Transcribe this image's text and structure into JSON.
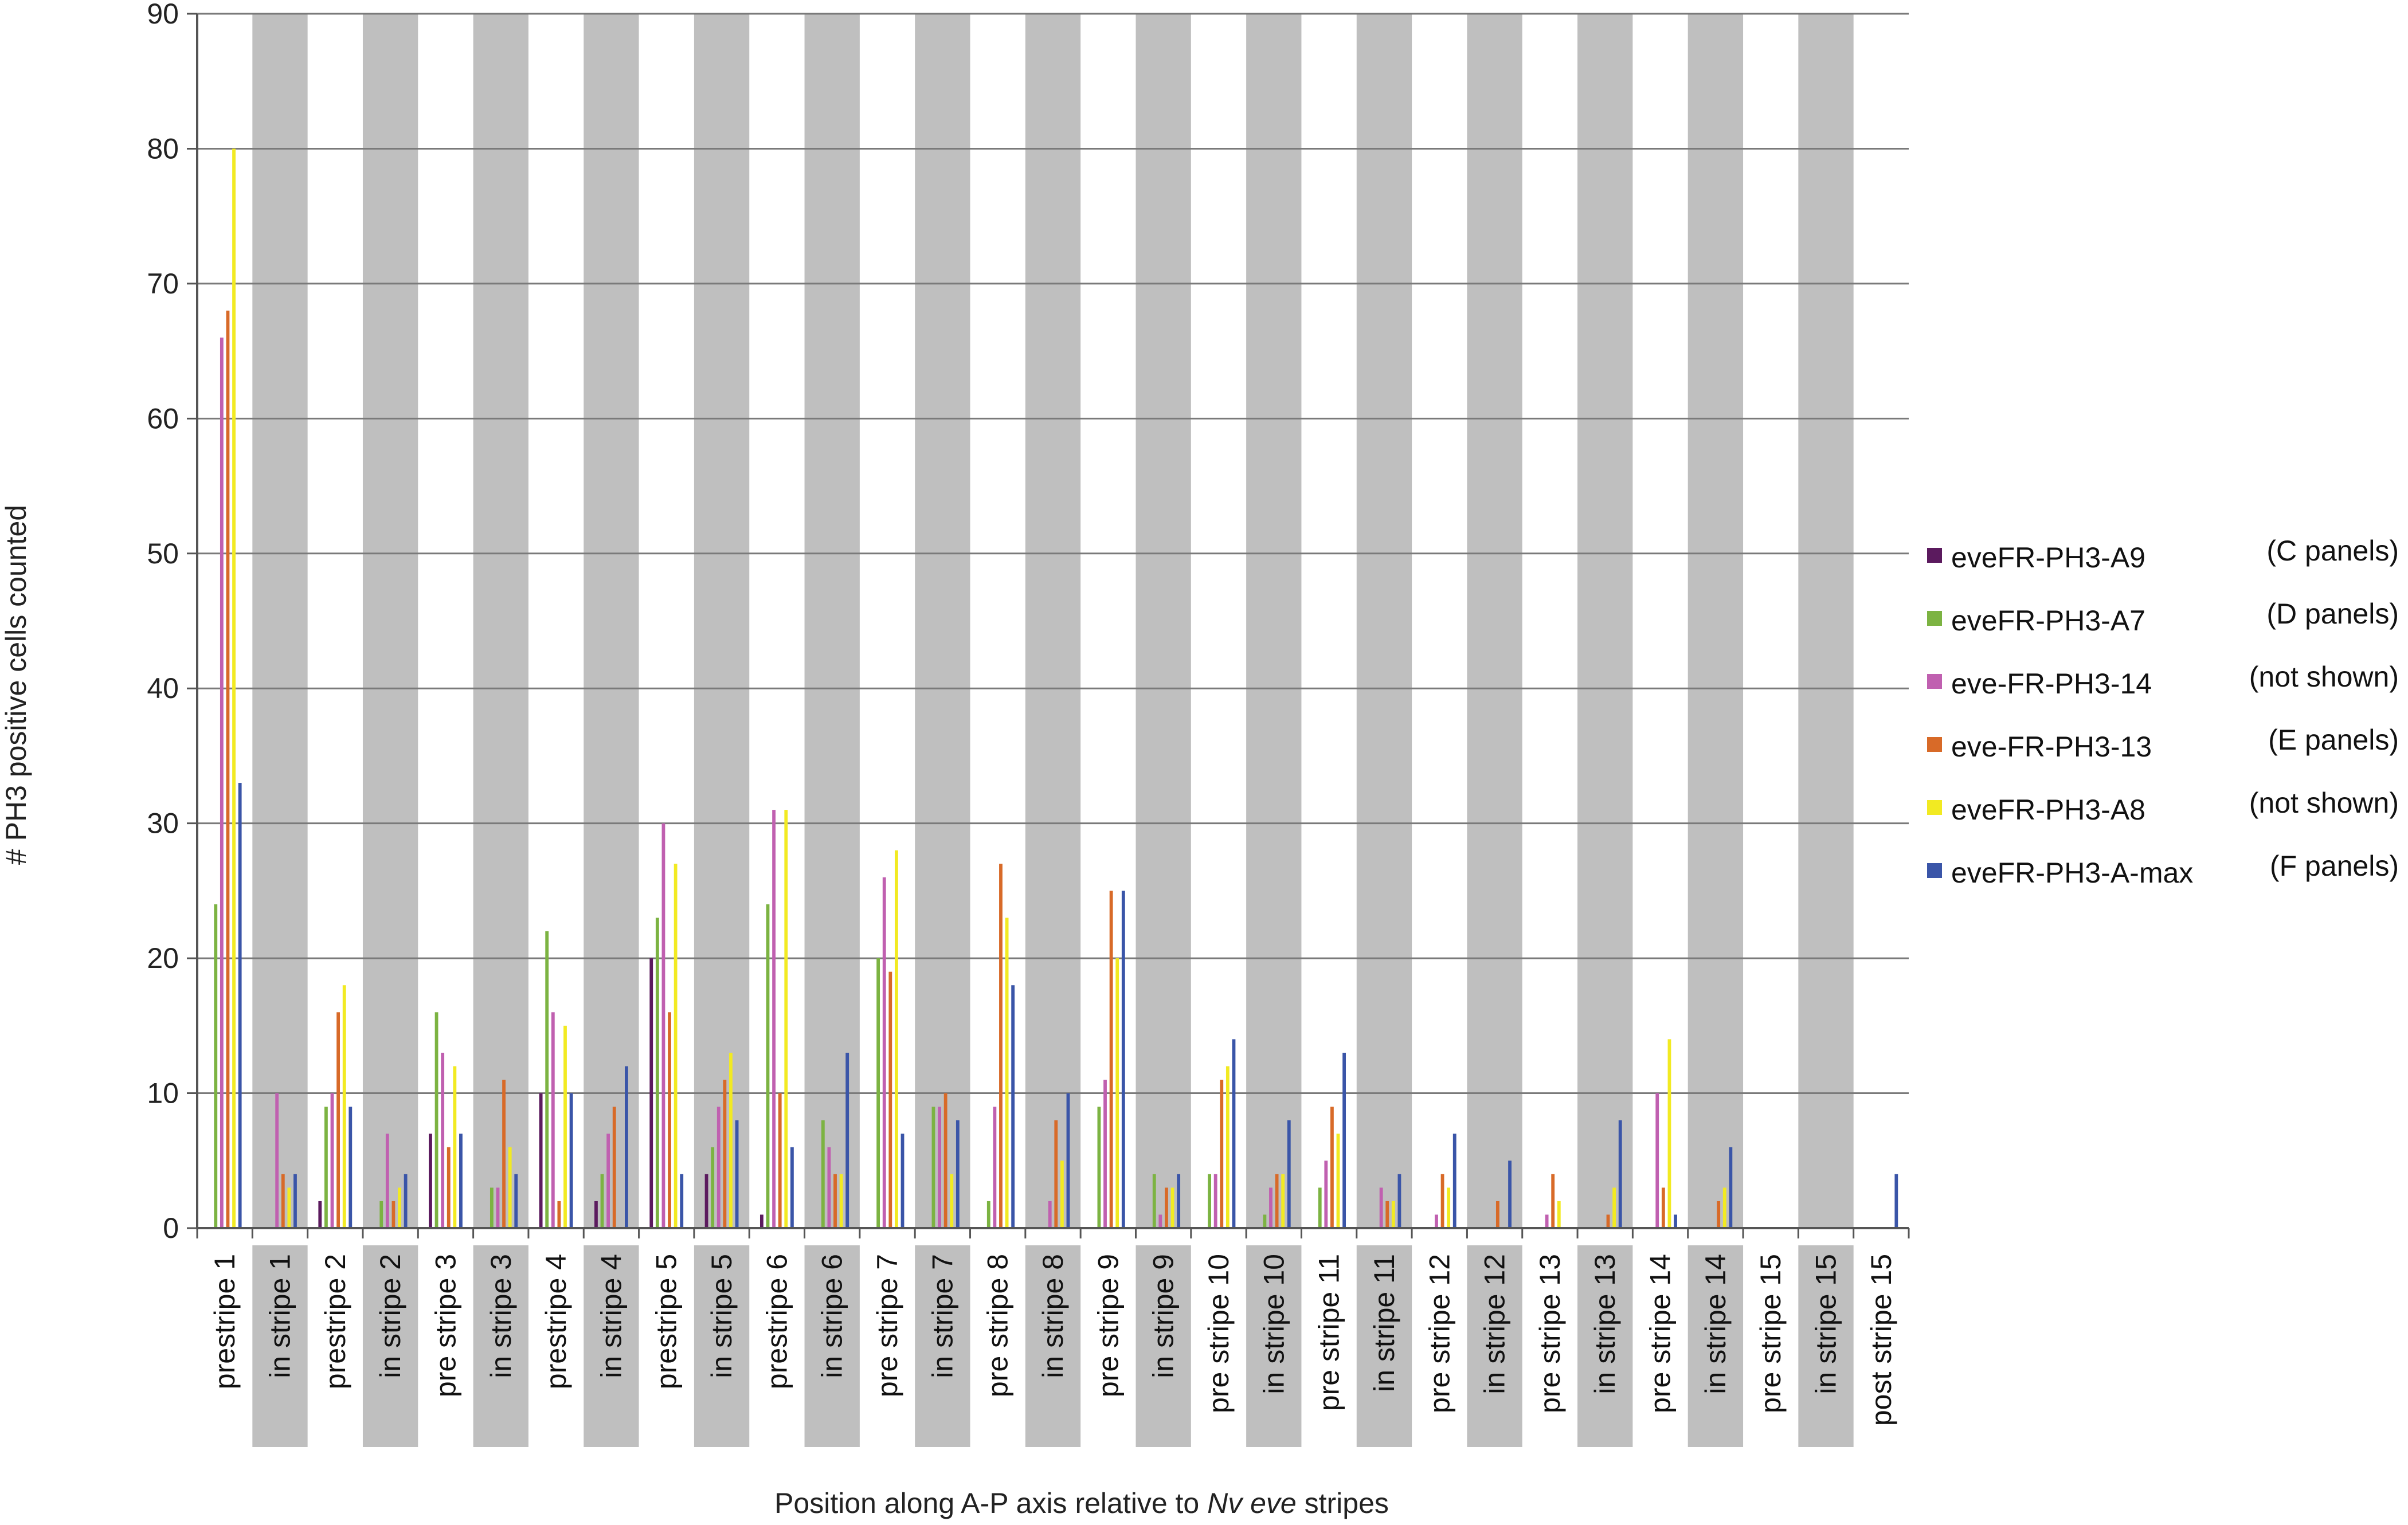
{
  "chart_data": {
    "type": "bar",
    "ylabel": "# PH3 positive cells counted",
    "xlabel_parts": [
      {
        "text": "Position along A-P axis relative to ",
        "italic": false
      },
      {
        "text": "Nv eve",
        "italic": true
      },
      {
        "text": " stripes",
        "italic": false
      }
    ],
    "ylim": [
      0,
      90
    ],
    "yticks": [
      0,
      10,
      20,
      30,
      40,
      50,
      60,
      70,
      80,
      90
    ],
    "grid": true,
    "legend_position": "right",
    "shaded_category_color": "#bfbfbf",
    "categories": [
      "prestripe 1",
      "in stripe 1",
      "prestripe 2",
      "in stripe 2",
      "pre stripe 3",
      "in stripe 3",
      "prestripe 4",
      "in stripe 4",
      "prestripe 5",
      "in stripe 5",
      "prestripe 6",
      "in stripe 6",
      "pre stripe 7",
      "in stripe 7",
      "pre stripe 8",
      "in stripe 8",
      "pre stripe 9",
      "in stripe 9",
      "pre stripe 10",
      "in stripe 10",
      "pre stripe 11",
      "in stripe 11",
      "pre stripe 12",
      "in stripe 12",
      "pre stripe 13",
      "in stripe 13",
      "pre stripe 14",
      "in stripe 14",
      "pre stripe 15",
      "in stripe 15",
      "post stripe 15"
    ],
    "series": [
      {
        "name": "eveFR-PH3-A9",
        "note": "(C panels)",
        "color": "#5b1a5e",
        "values": [
          0,
          0,
          2,
          0,
          7,
          0,
          10,
          2,
          20,
          4,
          1,
          0,
          0,
          0,
          0,
          0,
          0,
          0,
          0,
          0,
          0,
          0,
          0,
          0,
          0,
          0,
          0,
          0,
          0,
          0,
          0
        ]
      },
      {
        "name": "eveFR-PH3-A7",
        "note": "(D panels)",
        "color": "#7cb342",
        "values": [
          24,
          0,
          9,
          2,
          16,
          3,
          22,
          4,
          23,
          6,
          24,
          8,
          20,
          9,
          2,
          0,
          9,
          4,
          4,
          1,
          3,
          0,
          0,
          0,
          0,
          0,
          0,
          0,
          0,
          0,
          0
        ]
      },
      {
        "name": "eve-FR-PH3-14",
        "note": "(not shown)",
        "color": "#c060b0",
        "values": [
          66,
          10,
          10,
          7,
          13,
          3,
          16,
          7,
          30,
          9,
          31,
          6,
          26,
          9,
          9,
          2,
          11,
          1,
          4,
          3,
          5,
          3,
          1,
          0,
          1,
          0,
          10,
          0,
          0,
          0,
          0
        ]
      },
      {
        "name": "eve-FR-PH3-13",
        "note": "(E panels)",
        "color": "#d86a28",
        "values": [
          68,
          4,
          16,
          2,
          6,
          11,
          2,
          9,
          16,
          11,
          10,
          4,
          19,
          10,
          27,
          8,
          25,
          3,
          11,
          4,
          9,
          2,
          4,
          2,
          4,
          1,
          3,
          2,
          0,
          0,
          0
        ]
      },
      {
        "name": "eveFR-PH3-A8",
        "note": "(not shown)",
        "color": "#f2ea22",
        "values": [
          80,
          3,
          18,
          3,
          12,
          6,
          15,
          0,
          27,
          13,
          31,
          4,
          28,
          4,
          23,
          5,
          20,
          3,
          12,
          4,
          7,
          2,
          3,
          0,
          2,
          3,
          14,
          3,
          0,
          0,
          0
        ]
      },
      {
        "name": "eveFR-PH3-A-max",
        "note": "(F panels)",
        "color": "#3a55a8",
        "values": [
          33,
          4,
          9,
          4,
          7,
          4,
          10,
          12,
          4,
          8,
          6,
          13,
          7,
          8,
          18,
          10,
          25,
          4,
          14,
          8,
          13,
          4,
          7,
          5,
          0,
          8,
          1,
          6,
          0,
          0,
          4
        ]
      }
    ]
  }
}
